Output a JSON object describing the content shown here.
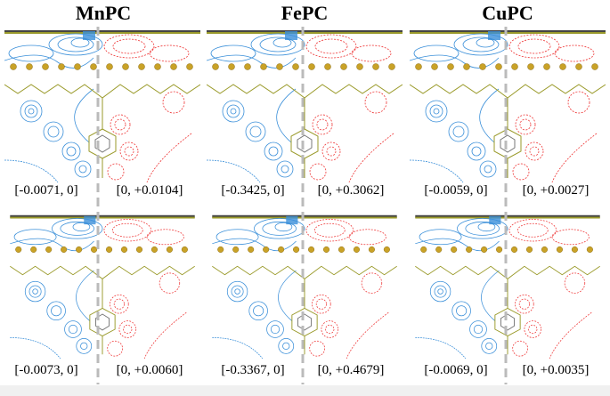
{
  "columns": [
    {
      "title": "MnPC",
      "rows": [
        {
          "left": "[-0.0071, 0]",
          "right": "[0, +0.0104]"
        },
        {
          "left": "[-0.0073, 0]",
          "right": "[0, +0.0060]"
        }
      ]
    },
    {
      "title": "FePC",
      "rows": [
        {
          "left": "[-0.3425, 0]",
          "right": "[0, +0.3062]"
        },
        {
          "left": "[-0.3367, 0]",
          "right": "[0, +0.4679]"
        }
      ]
    },
    {
      "title": "CuPC",
      "rows": [
        {
          "left": "[-0.0059, 0]",
          "right": "[0, +0.0027]"
        },
        {
          "left": "[-0.0069, 0]",
          "right": "[0, +0.0035]"
        }
      ]
    }
  ]
}
